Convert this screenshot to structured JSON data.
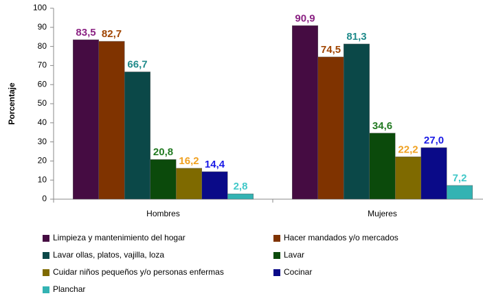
{
  "chart_data": {
    "type": "bar",
    "y_label": "Porcentaje",
    "categories": [
      "Hombres",
      "Mujeres"
    ],
    "ylim": [
      0,
      100
    ],
    "yticks": [
      0,
      10,
      20,
      30,
      40,
      50,
      60,
      70,
      80,
      90,
      100
    ],
    "series": [
      {
        "name": "Limpieza y mantenimiento del hogar",
        "color": "#450c42",
        "label_color": "#8b2283",
        "values": [
          83.5,
          90.9
        ],
        "value_labels": [
          "83,5",
          "90,9"
        ]
      },
      {
        "name": "Hacer mandados y/o mercados",
        "color": "#7f3300",
        "label_color": "#a04400",
        "values": [
          82.7,
          74.5
        ],
        "value_labels": [
          "82,7",
          "74,5"
        ]
      },
      {
        "name": "Lavar ollas, platos, vajilla, loza",
        "color": "#0b4848",
        "label_color": "#1f8a8a",
        "values": [
          66.7,
          81.3
        ],
        "value_labels": [
          "66,7",
          "81,3"
        ]
      },
      {
        "name": "Lavar",
        "color": "#0b4a0b",
        "label_color": "#227a22",
        "values": [
          20.8,
          34.6
        ],
        "value_labels": [
          "20,8",
          "34,6"
        ]
      },
      {
        "name": "Cuidar niños pequeños y/o personas enfermas",
        "color": "#7f6a00",
        "label_color": "#f0a020",
        "values": [
          16.2,
          22.2
        ],
        "value_labels": [
          "16,2",
          "22,2"
        ]
      },
      {
        "name": "Cocinar",
        "color": "#0a0a88",
        "label_color": "#1a1ae6",
        "values": [
          14.4,
          27.0
        ],
        "value_labels": [
          "14,4",
          "27,0"
        ]
      },
      {
        "name": "Planchar",
        "color": "#33b3b3",
        "label_color": "#40c8c8",
        "values": [
          2.8,
          7.2
        ],
        "value_labels": [
          "2,8",
          "7,2"
        ]
      }
    ]
  }
}
